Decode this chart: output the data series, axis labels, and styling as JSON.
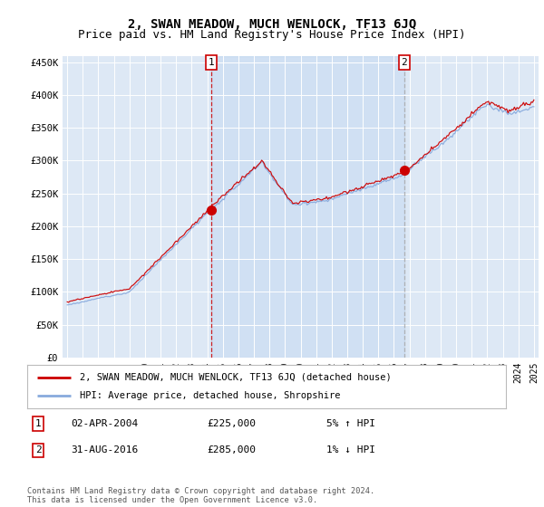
{
  "title": "2, SWAN MEADOW, MUCH WENLOCK, TF13 6JQ",
  "subtitle": "Price paid vs. HM Land Registry's House Price Index (HPI)",
  "ylabel_ticks": [
    "£0",
    "£50K",
    "£100K",
    "£150K",
    "£200K",
    "£250K",
    "£300K",
    "£350K",
    "£400K",
    "£450K"
  ],
  "ytick_values": [
    0,
    50000,
    100000,
    150000,
    200000,
    250000,
    300000,
    350000,
    400000,
    450000
  ],
  "ylim": [
    0,
    460000
  ],
  "xlim_start": 1994.7,
  "xlim_end": 2025.3,
  "background_color": "#dde8f5",
  "line1_color": "#cc0000",
  "line2_color": "#88aadd",
  "vline1_color": "#cc0000",
  "vline2_color": "#aaaaaa",
  "vline1_x": 2004.25,
  "vline2_x": 2016.67,
  "shade_alpha": 0.25,
  "legend_line1": "2, SWAN MEADOW, MUCH WENLOCK, TF13 6JQ (detached house)",
  "legend_line2": "HPI: Average price, detached house, Shropshire",
  "table_row1": [
    "1",
    "02-APR-2004",
    "£225,000",
    "5% ↑ HPI"
  ],
  "table_row2": [
    "2",
    "31-AUG-2016",
    "£285,000",
    "1% ↓ HPI"
  ],
  "footer": "Contains HM Land Registry data © Crown copyright and database right 2024.\nThis data is licensed under the Open Government Licence v3.0.",
  "title_fontsize": 10,
  "subtitle_fontsize": 9,
  "figsize": [
    6.0,
    5.6
  ],
  "dpi": 100
}
